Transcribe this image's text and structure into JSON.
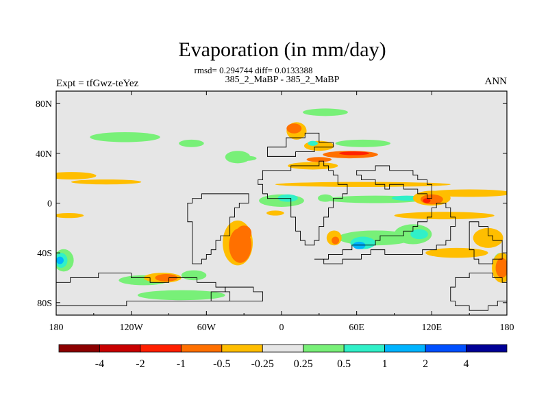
{
  "chart_data": {
    "type": "heatmap",
    "title": "Evaporation (in mm/day)",
    "stats_line": "rmsd= 0.294744 diff= 0.0133388",
    "subtitle": "385_2_MaBP - 385_2_MaBP",
    "left_label": "Expt = tfGwz-teYez",
    "right_label": "ANN",
    "xlim": [
      -180,
      180
    ],
    "ylim": [
      -90,
      90
    ],
    "x_ticks": [
      {
        "value": -180,
        "label": "180"
      },
      {
        "value": -120,
        "label": "120W"
      },
      {
        "value": -60,
        "label": "60W"
      },
      {
        "value": 0,
        "label": "0"
      },
      {
        "value": 60,
        "label": "60E"
      },
      {
        "value": 120,
        "label": "120E"
      },
      {
        "value": 180,
        "label": "180"
      }
    ],
    "y_ticks": [
      {
        "value": 80,
        "label": "80N"
      },
      {
        "value": 40,
        "label": "40N"
      },
      {
        "value": 0,
        "label": "0"
      },
      {
        "value": -40,
        "label": "40S"
      },
      {
        "value": -80,
        "label": "80S"
      }
    ],
    "colorbar": {
      "colors": [
        "#8c0000",
        "#c80000",
        "#ff2000",
        "#ff7000",
        "#ffbe00",
        "#e6e6e6",
        "#78f078",
        "#30f0c8",
        "#00b4ff",
        "#0050ff",
        "#000096"
      ],
      "tick_labels": [
        "-4",
        "-2",
        "-1",
        "-0.5",
        "-0.25",
        "0.25",
        "0.5",
        "1",
        "2",
        "4"
      ]
    },
    "background_color": "#e6e6e6",
    "regions": [
      {
        "level": 6,
        "cx": -125,
        "cy": 53,
        "rx": 28,
        "ry": 4
      },
      {
        "level": 6,
        "cx": -72,
        "cy": 48,
        "rx": 10,
        "ry": 3
      },
      {
        "level": 6,
        "cx": 65,
        "cy": 48,
        "rx": 22,
        "ry": 3
      },
      {
        "level": 6,
        "cx": 35,
        "cy": 73,
        "rx": 18,
        "ry": 3
      },
      {
        "level": 6,
        "cx": -35,
        "cy": 37,
        "rx": 10,
        "ry": 5
      },
      {
        "level": 6,
        "cx": -28,
        "cy": 36,
        "rx": 8,
        "ry": 2
      },
      {
        "level": 6,
        "cx": 0,
        "cy": 2,
        "rx": 18,
        "ry": 5
      },
      {
        "level": 7,
        "cx": 5,
        "cy": 4,
        "rx": 8,
        "ry": 3
      },
      {
        "level": 6,
        "cx": 35,
        "cy": 4,
        "rx": 6,
        "ry": 3
      },
      {
        "level": 6,
        "cx": 75,
        "cy": 3,
        "rx": 40,
        "ry": 3
      },
      {
        "level": 7,
        "cx": 100,
        "cy": 4,
        "rx": 12,
        "ry": 2
      },
      {
        "level": 6,
        "cx": 75,
        "cy": -28,
        "rx": 30,
        "ry": 6
      },
      {
        "level": 7,
        "cx": 65,
        "cy": -32,
        "rx": 10,
        "ry": 5
      },
      {
        "level": 8,
        "cx": 62,
        "cy": -34,
        "rx": 5,
        "ry": 3
      },
      {
        "level": 6,
        "cx": 105,
        "cy": -25,
        "rx": 15,
        "ry": 8
      },
      {
        "level": 7,
        "cx": 110,
        "cy": -25,
        "rx": 7,
        "ry": 4
      },
      {
        "level": 6,
        "cx": -110,
        "cy": -62,
        "rx": 20,
        "ry": 4
      },
      {
        "level": 6,
        "cx": -70,
        "cy": -58,
        "rx": 10,
        "ry": 4
      },
      {
        "level": 6,
        "cx": -80,
        "cy": -74,
        "rx": 35,
        "ry": 4
      },
      {
        "level": 6,
        "cx": -174,
        "cy": -46,
        "rx": 8,
        "ry": 9
      },
      {
        "level": 7,
        "cx": -176,
        "cy": -46,
        "rx": 5,
        "ry": 6
      },
      {
        "level": 8,
        "cx": -177,
        "cy": -46,
        "rx": 3,
        "ry": 3
      },
      {
        "level": 6,
        "cx": 175,
        "cy": -48,
        "rx": 6,
        "ry": 8
      },
      {
        "level": 7,
        "cx": 177,
        "cy": -46,
        "rx": 3,
        "ry": 4
      },
      {
        "level": 4,
        "cx": -168,
        "cy": 22,
        "rx": 20,
        "ry": 3
      },
      {
        "level": 4,
        "cx": -140,
        "cy": 17,
        "rx": 28,
        "ry": 2
      },
      {
        "level": 4,
        "cx": -170,
        "cy": -10,
        "rx": 12,
        "ry": 2
      },
      {
        "level": 4,
        "cx": 150,
        "cy": 8,
        "rx": 35,
        "ry": 3
      },
      {
        "level": 4,
        "cx": 65,
        "cy": 15,
        "rx": 70,
        "ry": 2
      },
      {
        "level": 4,
        "cx": -5,
        "cy": -8,
        "rx": 7,
        "ry": 2
      },
      {
        "level": 4,
        "cx": 130,
        "cy": -10,
        "rx": 40,
        "ry": 3
      },
      {
        "level": 4,
        "cx": 140,
        "cy": -40,
        "rx": 25,
        "ry": 4
      },
      {
        "level": 4,
        "cx": 165,
        "cy": -28,
        "rx": 12,
        "ry": 8
      },
      {
        "level": 4,
        "cx": -35,
        "cy": -32,
        "rx": 12,
        "ry": 18
      },
      {
        "level": 3,
        "cx": -33,
        "cy": -34,
        "rx": 9,
        "ry": 14
      },
      {
        "level": 3,
        "cx": -30,
        "cy": -24,
        "rx": 6,
        "ry": 6
      },
      {
        "level": 4,
        "cx": 42,
        "cy": -28,
        "rx": 6,
        "ry": 6
      },
      {
        "level": 3,
        "cx": 43,
        "cy": -30,
        "rx": 3,
        "ry": 3
      },
      {
        "level": 4,
        "cx": 120,
        "cy": 4,
        "rx": 15,
        "ry": 6
      },
      {
        "level": 3,
        "cx": 120,
        "cy": 3,
        "rx": 9,
        "ry": 4
      },
      {
        "level": 2,
        "cx": 116,
        "cy": 2,
        "rx": 3,
        "ry": 2
      },
      {
        "level": 4,
        "cx": 176,
        "cy": -52,
        "rx": 8,
        "ry": 12
      },
      {
        "level": 3,
        "cx": 176,
        "cy": -52,
        "rx": 5,
        "ry": 8
      },
      {
        "level": 4,
        "cx": -95,
        "cy": -60,
        "rx": 15,
        "ry": 4
      },
      {
        "level": 3,
        "cx": -92,
        "cy": -60,
        "rx": 9,
        "ry": 3
      },
      {
        "level": 4,
        "cx": 12,
        "cy": 58,
        "rx": 8,
        "ry": 7
      },
      {
        "level": 3,
        "cx": 10,
        "cy": 60,
        "rx": 6,
        "ry": 4
      },
      {
        "level": 4,
        "cx": 30,
        "cy": 46,
        "rx": 12,
        "ry": 4
      },
      {
        "level": 7,
        "cx": 25,
        "cy": 48,
        "rx": 4,
        "ry": 2
      },
      {
        "level": 4,
        "cx": 25,
        "cy": 30,
        "rx": 20,
        "ry": 3
      },
      {
        "level": 3,
        "cx": 55,
        "cy": 39,
        "rx": 22,
        "ry": 3
      },
      {
        "level": 2,
        "cx": 58,
        "cy": 40,
        "rx": 12,
        "ry": 1.5
      },
      {
        "level": 3,
        "cx": 30,
        "cy": 35,
        "rx": 10,
        "ry": 2
      }
    ],
    "land_outlines": [
      [
        [
          -10,
          36
        ],
        [
          -10,
          44
        ],
        [
          5,
          44
        ],
        [
          5,
          52
        ],
        [
          20,
          52
        ],
        [
          20,
          56
        ],
        [
          30,
          56
        ],
        [
          30,
          50
        ],
        [
          40,
          50
        ],
        [
          40,
          45
        ],
        [
          30,
          45
        ],
        [
          25,
          40
        ],
        [
          15,
          40
        ],
        [
          10,
          37
        ],
        [
          0,
          37
        ],
        [
          -10,
          36
        ]
      ],
      [
        [
          -15,
          28
        ],
        [
          0,
          28
        ],
        [
          12,
          30
        ],
        [
          25,
          30
        ],
        [
          30,
          32
        ],
        [
          33,
          30
        ],
        [
          40,
          22
        ],
        [
          45,
          14
        ],
        [
          52,
          12
        ],
        [
          50,
          5
        ],
        [
          42,
          2
        ],
        [
          40,
          -5
        ],
        [
          35,
          -15
        ],
        [
          30,
          -25
        ],
        [
          25,
          -32
        ],
        [
          18,
          -35
        ],
        [
          15,
          -25
        ],
        [
          12,
          -15
        ],
        [
          8,
          -5
        ],
        [
          8,
          5
        ],
        [
          0,
          5
        ],
        [
          -8,
          5
        ],
        [
          -15,
          10
        ],
        [
          -18,
          18
        ],
        [
          -15,
          28
        ]
      ],
      [
        [
          -40,
          8
        ],
        [
          -30,
          6
        ],
        [
          -25,
          0
        ],
        [
          -35,
          -5
        ],
        [
          -40,
          -15
        ],
        [
          -42,
          -25
        ],
        [
          -50,
          -30
        ],
        [
          -55,
          -40
        ],
        [
          -60,
          -45
        ],
        [
          -65,
          -48
        ],
        [
          -70,
          -50
        ],
        [
          -72,
          -40
        ],
        [
          -70,
          -30
        ],
        [
          -70,
          -18
        ],
        [
          -75,
          -10
        ],
        [
          -75,
          0
        ],
        [
          -70,
          5
        ],
        [
          -55,
          8
        ],
        [
          -40,
          8
        ]
      ],
      [
        [
          28,
          -45
        ],
        [
          45,
          -42
        ],
        [
          55,
          -35
        ],
        [
          70,
          -32
        ],
        [
          80,
          -28
        ],
        [
          95,
          -25
        ],
        [
          105,
          -18
        ],
        [
          115,
          -10
        ],
        [
          120,
          -2
        ],
        [
          125,
          0
        ],
        [
          130,
          -5
        ],
        [
          135,
          -10
        ],
        [
          140,
          -15
        ],
        [
          135,
          -25
        ],
        [
          130,
          -35
        ],
        [
          120,
          -38
        ],
        [
          110,
          -40
        ],
        [
          100,
          -42
        ],
        [
          90,
          -40
        ],
        [
          80,
          -38
        ],
        [
          70,
          -40
        ],
        [
          60,
          -45
        ],
        [
          40,
          -50
        ],
        [
          28,
          -45
        ]
      ],
      [
        [
          60,
          25
        ],
        [
          72,
          25
        ],
        [
          80,
          30
        ],
        [
          90,
          28
        ],
        [
          100,
          25
        ],
        [
          110,
          20
        ],
        [
          120,
          15
        ],
        [
          120,
          5
        ],
        [
          112,
          8
        ],
        [
          105,
          12
        ],
        [
          95,
          15
        ],
        [
          85,
          12
        ],
        [
          75,
          18
        ],
        [
          65,
          20
        ],
        [
          60,
          25
        ]
      ],
      [
        [
          150,
          -15
        ],
        [
          160,
          -18
        ],
        [
          165,
          -25
        ],
        [
          170,
          -30
        ],
        [
          175,
          -35
        ],
        [
          178,
          -45
        ],
        [
          170,
          -50
        ],
        [
          160,
          -48
        ],
        [
          155,
          -40
        ],
        [
          150,
          -30
        ],
        [
          150,
          -15
        ]
      ],
      [
        [
          -180,
          -62
        ],
        [
          -160,
          -60
        ],
        [
          -130,
          -58
        ],
        [
          -100,
          -62
        ],
        [
          -80,
          -60
        ],
        [
          -60,
          -65
        ],
        [
          -45,
          -70
        ],
        [
          -40,
          -78
        ],
        [
          -60,
          -80
        ],
        [
          -100,
          -80
        ],
        [
          -140,
          -82
        ],
        [
          -180,
          -82
        ],
        [
          -180,
          -62
        ]
      ],
      [
        [
          -55,
          -70
        ],
        [
          -35,
          -68
        ],
        [
          -20,
          -72
        ],
        [
          -15,
          -78
        ],
        [
          -30,
          -80
        ],
        [
          -55,
          -78
        ],
        [
          -55,
          -70
        ]
      ],
      [
        [
          140,
          -60
        ],
        [
          160,
          -58
        ],
        [
          180,
          -62
        ],
        [
          180,
          -80
        ],
        [
          160,
          -85
        ],
        [
          140,
          -82
        ],
        [
          135,
          -72
        ],
        [
          140,
          -60
        ]
      ]
    ]
  }
}
